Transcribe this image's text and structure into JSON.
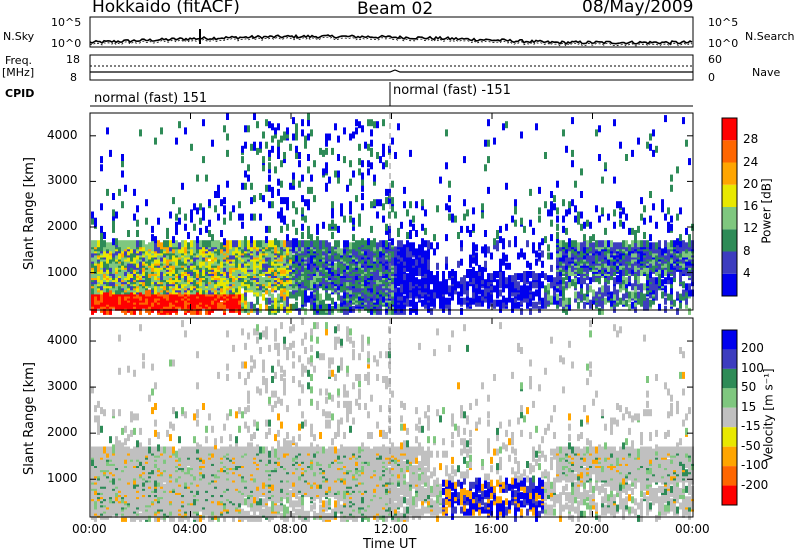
{
  "header": {
    "station": "Hokkaido (fitACF)",
    "beam": "Beam 02",
    "date": "08/May/2009"
  },
  "noise_panel": {
    "left_label": "N.Sky",
    "right_label": "N.Search",
    "left_ticks": [
      "10^5",
      "10^0"
    ],
    "right_ticks": [
      "10^5",
      "10^0"
    ]
  },
  "freq_panel": {
    "left_label_line1": "Freq.",
    "left_label_line2": "[MHz]",
    "right_label": "Nave",
    "left_ticks": [
      "18",
      "8"
    ],
    "right_ticks": [
      "60",
      "0"
    ]
  },
  "cpid": {
    "label": "CPID",
    "segments": [
      {
        "text": "normal (fast) 151"
      },
      {
        "text": "normal (fast) -151"
      }
    ]
  },
  "colors": {
    "power_scale": [
      "#0000ee",
      "#3d3dbf",
      "#2e8b57",
      "#7fc77f",
      "#e8e800",
      "#ffa500",
      "#ff6600",
      "#ff0000"
    ],
    "velocity_scale": [
      "#0000ee",
      "#3d3dbf",
      "#2e8b57",
      "#7fc77f",
      "#c0c0c0",
      "#e8e800",
      "#ffa500",
      "#ff6600",
      "#ff0000"
    ]
  },
  "chart_data": [
    {
      "type": "heatmap",
      "name": "power",
      "ylabel": "Slant Range [km]",
      "y_ticks": [
        1000,
        2000,
        3000,
        4000
      ],
      "ylim": [
        180,
        4500
      ],
      "colorbar_label": "Power [dB]",
      "colorbar_ticks": [
        4,
        8,
        12,
        16,
        20,
        24,
        28
      ],
      "colorbar_range": [
        0,
        32
      ]
    },
    {
      "type": "heatmap",
      "name": "velocity",
      "ylabel": "Slant Range [km]",
      "y_ticks": [
        1000,
        2000,
        3000,
        4000
      ],
      "ylim": [
        180,
        4500
      ],
      "colorbar_label": "Velocity [m s⁻¹]",
      "colorbar_ticks": [
        "200",
        "100",
        "50",
        "15",
        "-15",
        "-50",
        "-100",
        "-200"
      ],
      "x_ticks": [
        "00:00",
        "04:00",
        "08:00",
        "12:00",
        "16:00",
        "20:00",
        "00:00"
      ],
      "xlabel": "Time UT"
    }
  ]
}
